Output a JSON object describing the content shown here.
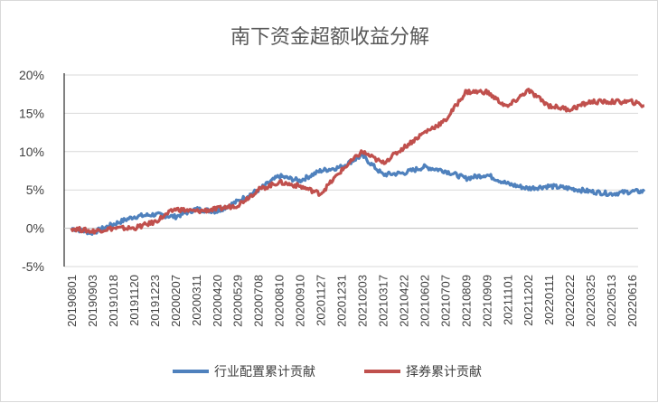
{
  "chart_data": {
    "type": "line",
    "title": "南下资金超额收益分解",
    "xlabel": "",
    "ylabel": "",
    "ylim": [
      -0.05,
      0.2
    ],
    "yticks": [
      "-5%",
      "0%",
      "5%",
      "10%",
      "15%",
      "20%"
    ],
    "ytick_values": [
      -0.05,
      0,
      0.05,
      0.1,
      0.15,
      0.2
    ],
    "x_tick_labels": [
      "20190801",
      "20190903",
      "20191018",
      "20191120",
      "20191223",
      "20200207",
      "20200311",
      "20200420",
      "20200529",
      "20200708",
      "20200810",
      "20200910",
      "20201127",
      "20201231",
      "20210203",
      "20210317",
      "20210422",
      "20210602",
      "20210707",
      "20210809",
      "20210909",
      "20211101",
      "20211202",
      "20220111",
      "20220222",
      "20220325",
      "20220513",
      "20220616"
    ],
    "grid": "horizontal",
    "legend_position": "bottom",
    "series": [
      {
        "name": "行业配置累计贡献",
        "color": "#4f81bd",
        "x": [
          0,
          1,
          2,
          3,
          4,
          5,
          6,
          7,
          8,
          9,
          10,
          11,
          12,
          13,
          14,
          15,
          16,
          17,
          18,
          19,
          20,
          21,
          22,
          23,
          24,
          25,
          26,
          27,
          27.6
        ],
        "values": [
          0.0,
          -0.006,
          0.005,
          0.015,
          0.018,
          0.015,
          0.025,
          0.022,
          0.035,
          0.05,
          0.068,
          0.062,
          0.075,
          0.08,
          0.095,
          0.07,
          0.072,
          0.08,
          0.075,
          0.065,
          0.07,
          0.058,
          0.052,
          0.055,
          0.052,
          0.048,
          0.045,
          0.048,
          0.048
        ]
      },
      {
        "name": "择券累计贡献",
        "color": "#c0504d",
        "x": [
          0,
          1,
          2,
          3,
          4,
          5,
          6,
          7,
          8,
          9,
          10,
          11,
          12,
          13,
          14,
          15,
          16,
          17,
          18,
          19,
          20,
          21,
          22,
          23,
          24,
          25,
          26,
          27,
          27.6
        ],
        "values": [
          0.0,
          -0.004,
          0.0,
          0.0,
          0.008,
          0.025,
          0.022,
          0.025,
          0.03,
          0.05,
          0.06,
          0.055,
          0.045,
          0.075,
          0.1,
          0.085,
          0.105,
          0.125,
          0.14,
          0.178,
          0.178,
          0.158,
          0.18,
          0.16,
          0.155,
          0.165,
          0.165,
          0.165,
          0.16
        ]
      }
    ]
  }
}
